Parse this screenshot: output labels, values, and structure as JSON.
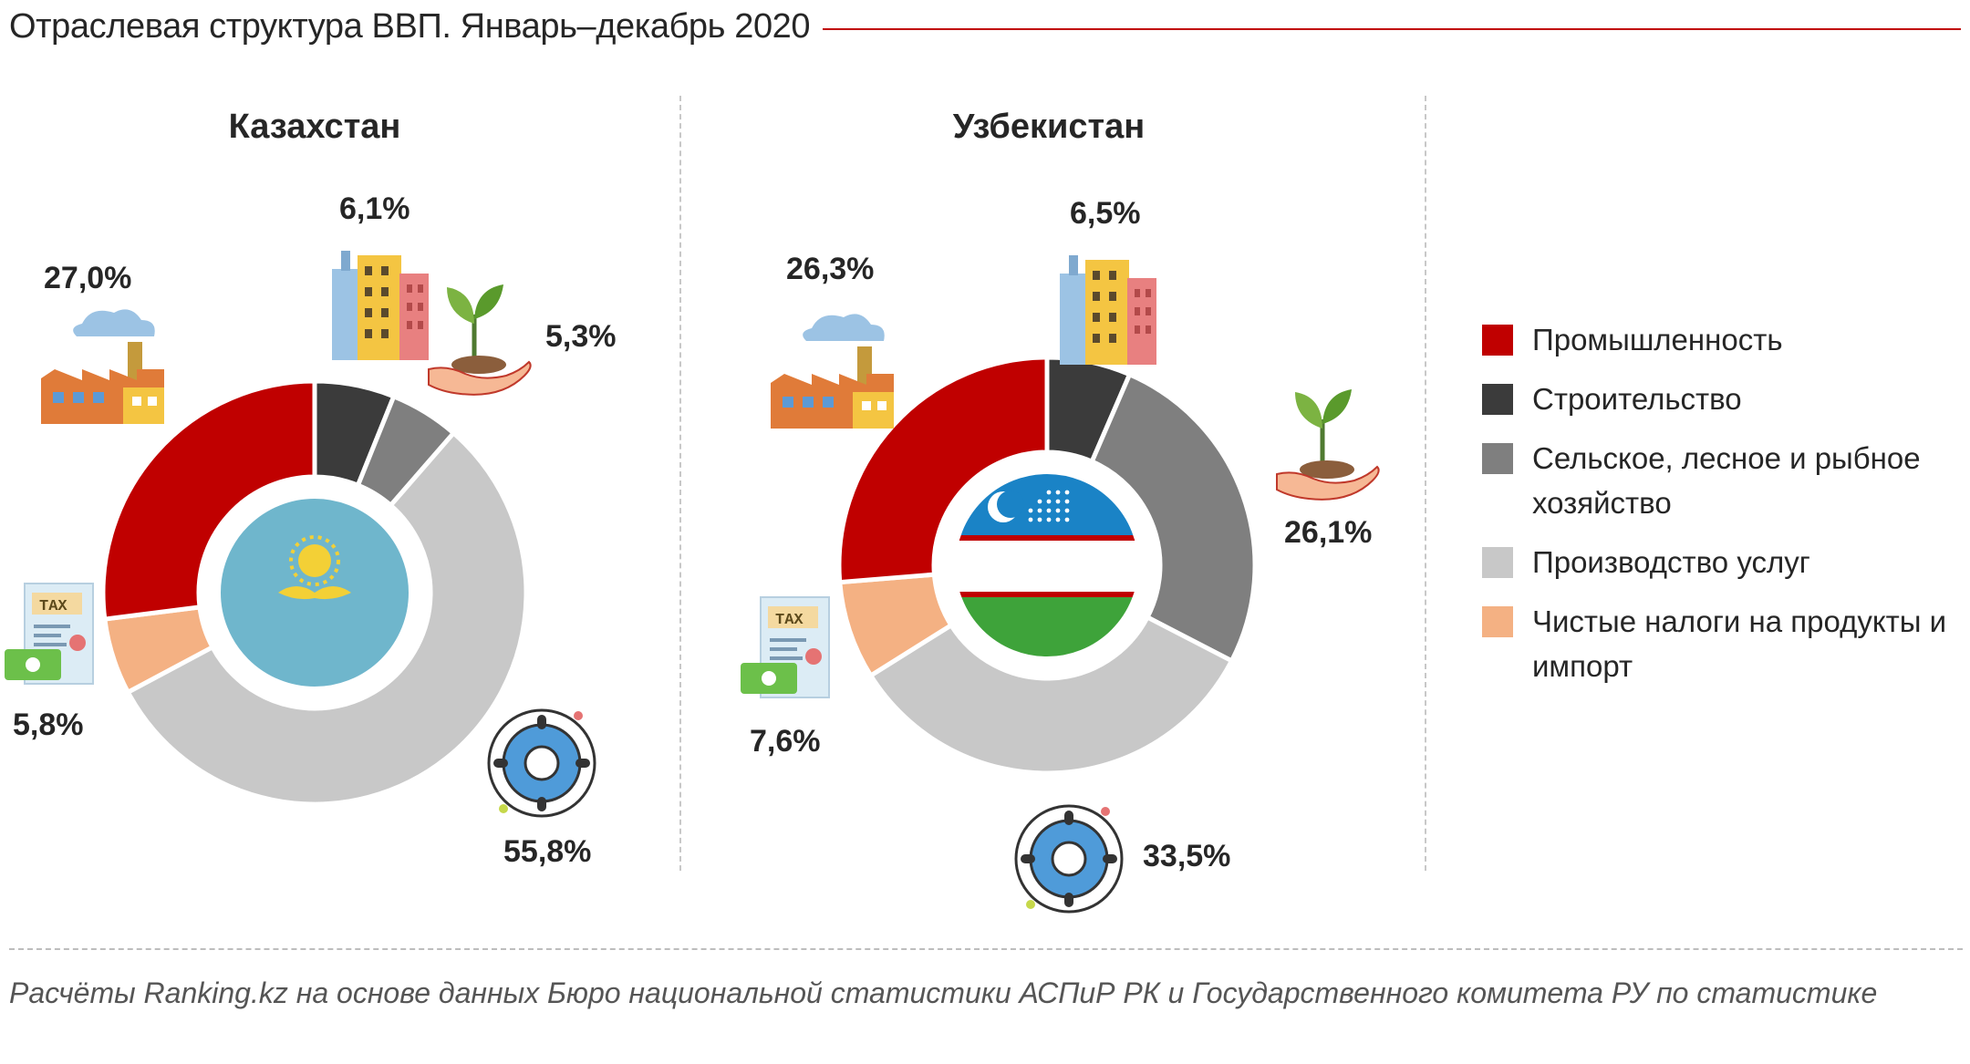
{
  "header": {
    "title": "Отраслевая структура ВВП. Январь–декабрь 2020"
  },
  "colors": {
    "industry": "#c00000",
    "construction": "#3b3b3b",
    "agriculture": "#7f7f7f",
    "services": "#c8c8c8",
    "taxes": "#f4b183",
    "accent": "#c00000"
  },
  "legend": {
    "items": [
      {
        "key": "industry",
        "label": "Промышленность"
      },
      {
        "key": "construction",
        "label": "Строительство"
      },
      {
        "key": "agriculture",
        "label": "Сельское, лесное и рыбное хозяйство"
      },
      {
        "key": "services",
        "label": "Производство услуг"
      },
      {
        "key": "taxes",
        "label": "Чистые налоги на продукты и импорт"
      }
    ]
  },
  "chart_data": [
    {
      "type": "donut",
      "title": "Казахстан",
      "center_image": "kazakhstan-flag",
      "slices": [
        {
          "key": "industry",
          "name": "Промышленность",
          "value": 27.0,
          "label": "27,0%",
          "icon": "factory-icon"
        },
        {
          "key": "construction",
          "name": "Строительство",
          "value": 6.1,
          "label": "6,1%",
          "icon": "buildings-icon"
        },
        {
          "key": "agriculture",
          "name": "Сельское, лесное и рыбное хозяйство",
          "value": 5.3,
          "label": "5,3%",
          "icon": "plant-in-hand-icon"
        },
        {
          "key": "services",
          "name": "Производство услуг",
          "value": 55.8,
          "label": "55,8%",
          "icon": "gear-icon"
        },
        {
          "key": "taxes",
          "name": "Чистые налоги на продукты и импорт",
          "value": 5.8,
          "label": "5,8%",
          "icon": "tax-document-icon"
        }
      ]
    },
    {
      "type": "donut",
      "title": "Узбекистан",
      "center_image": "uzbekistan-flag",
      "slices": [
        {
          "key": "industry",
          "name": "Промышленность",
          "value": 26.3,
          "label": "26,3%",
          "icon": "factory-icon"
        },
        {
          "key": "construction",
          "name": "Строительство",
          "value": 6.5,
          "label": "6,5%",
          "icon": "buildings-icon"
        },
        {
          "key": "agriculture",
          "name": "Сельское, лесное и рыбное хозяйство",
          "value": 26.1,
          "label": "26,1%",
          "icon": "plant-in-hand-icon"
        },
        {
          "key": "services",
          "name": "Производство услуг",
          "value": 33.5,
          "label": "33,5%",
          "icon": "gear-icon"
        },
        {
          "key": "taxes",
          "name": "Чистые налоги на продукты и импорт",
          "value": 7.6,
          "label": "7,6%",
          "icon": "tax-document-icon"
        }
      ]
    }
  ],
  "footer": {
    "source": "Расчёты Ranking.kz на основе данных Бюро национальной статистики АСПиР РК и Государственного комитета РУ по статистике"
  }
}
